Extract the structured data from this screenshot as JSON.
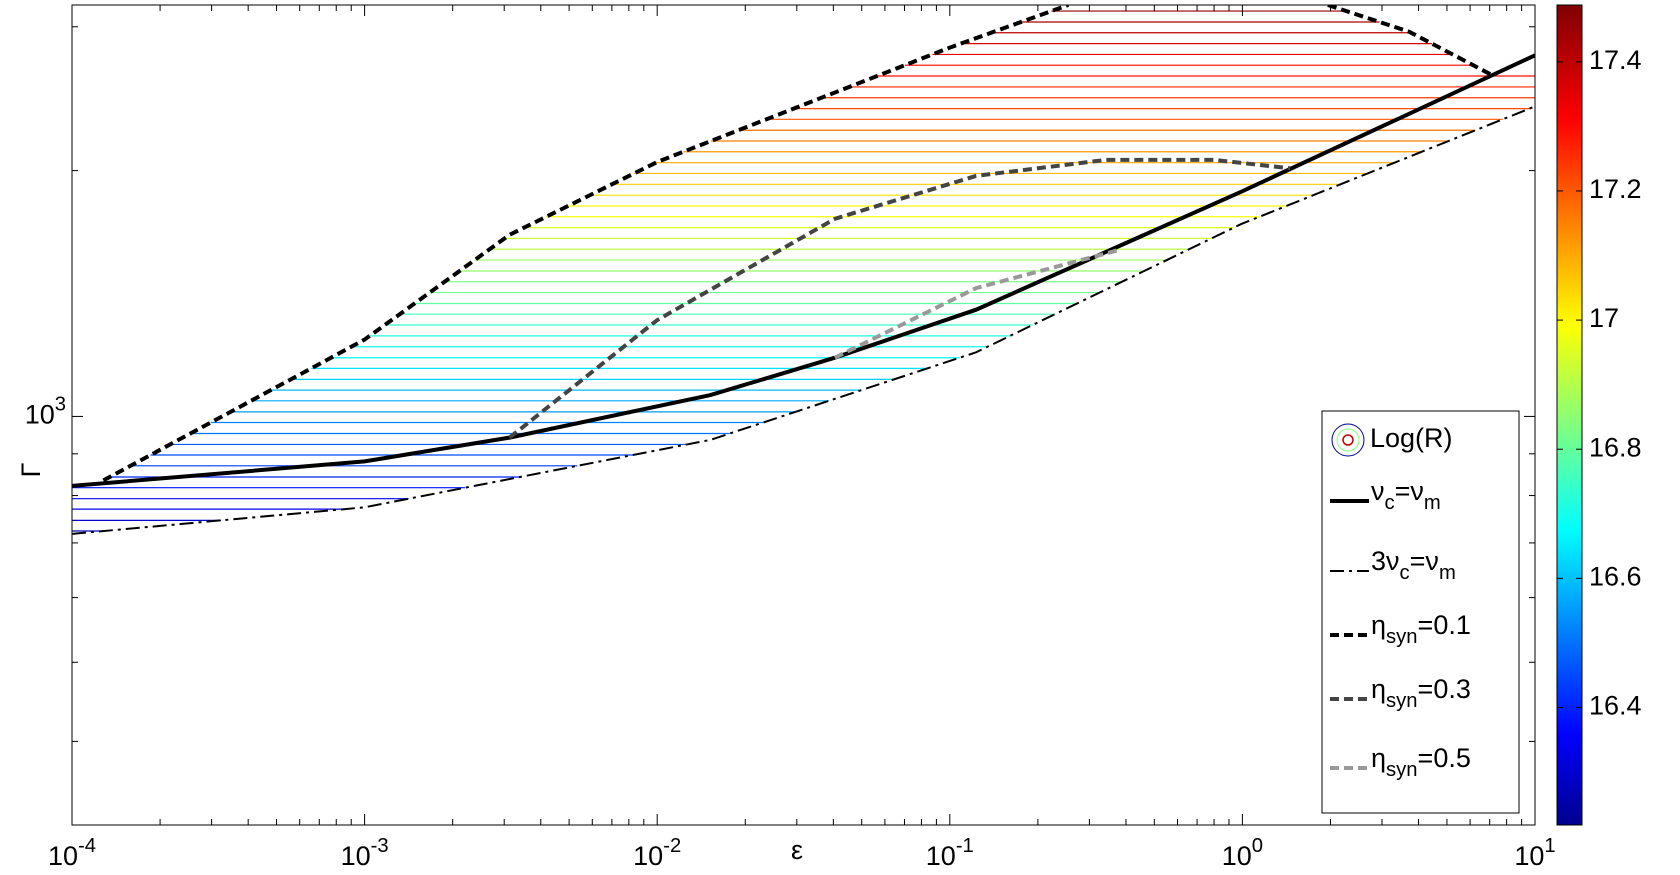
{
  "chart_data": {
    "type": "line",
    "xlabel": "ε",
    "ylabel": "Γ",
    "xscale": "log",
    "yscale": "log",
    "minor_ticks": true,
    "legend": "lower right",
    "xlim": [
      0.0001,
      10
    ],
    "xticks": [
      {
        "value": 0.0001,
        "label": "10^{-4}"
      },
      {
        "value": 0.001,
        "label": "10^{-3}"
      },
      {
        "value": 0.01,
        "label": "10^{-2}"
      },
      {
        "value": 0.1,
        "label": "10^{-1}"
      },
      {
        "value": 1,
        "label": "10^{0}"
      },
      {
        "value": 10,
        "label": "10^{1}"
      }
    ],
    "ylim": [
      316,
      3190
    ],
    "yticks": [
      {
        "value": 1000,
        "label": "10^{3}"
      }
    ],
    "series": [
      {
        "name": "ν_{c}=ν_{m}",
        "color": "#000000",
        "style": "solid",
        "x": [
          0.0001,
          0.001,
          0.00313,
          0.0152,
          0.0405,
          0.123,
          0.99,
          10
        ],
        "values": [
          822,
          881,
          942,
          1062,
          1180,
          1351,
          1884,
          2768
        ]
      },
      {
        "name": "3ν_{c}=ν_{m}",
        "color": "#000000",
        "style": "dashdot",
        "x": [
          0.0001,
          0.001,
          0.0152,
          0.123,
          0.99,
          10
        ],
        "values": [
          718,
          774,
          936,
          1198,
          1720,
          2397
        ]
      },
      {
        "name": "η_{syn}=0.1",
        "color": "#000000",
        "style": "dash",
        "x": [
          0.000128,
          0.001,
          0.00313,
          0.01,
          0.1,
          0.254,
          null,
          1.96,
          3.72,
          7.05
        ],
        "values": [
          835,
          1242,
          1669,
          2049,
          2829,
          3190,
          null,
          3190,
          2958,
          2624
        ]
      },
      {
        "name": "η_{syn}=0.3",
        "color": "#444444",
        "style": "dash",
        "x": [
          0.00313,
          0.01,
          0.0405,
          0.123,
          0.341,
          0.8,
          1.455
        ],
        "values": [
          942,
          1312,
          1746,
          1970,
          2061,
          2061,
          2013
        ]
      },
      {
        "name": "η_{syn}=0.5",
        "color": "#999999",
        "style": "dash",
        "x": [
          0.0405,
          0.123,
          0.372
        ],
        "values": [
          1180,
          1436,
          1596
        ]
      }
    ],
    "contour": {
      "name": "Log(R)",
      "levels": [
        724,
        746,
        770,
        793,
        818,
        843,
        870,
        897,
        924,
        953,
        983,
        1013,
        1045,
        1077,
        1110,
        1145,
        1180,
        1217,
        1255,
        1294,
        1334,
        1375,
        1418,
        1462,
        1507,
        1554,
        1602,
        1652,
        1703,
        1756,
        1810,
        1866,
        1924,
        1984,
        2045,
        2109,
        2174,
        2241,
        2311,
        2382,
        2456,
        2532,
        2611,
        2692,
        2775,
        2861,
        2950,
        3041,
        3136
      ],
      "values": [
        16.3,
        16.32,
        16.35,
        16.37,
        16.4,
        16.42,
        16.45,
        16.47,
        16.49,
        16.52,
        16.54,
        16.57,
        16.59,
        16.61,
        16.64,
        16.66,
        16.69,
        16.71,
        16.73,
        16.76,
        16.78,
        16.81,
        16.83,
        16.85,
        16.88,
        16.9,
        16.93,
        16.95,
        16.97,
        17.0,
        17.02,
        17.05,
        17.07,
        17.1,
        17.12,
        17.14,
        17.17,
        17.19,
        17.22,
        17.24,
        17.26,
        17.29,
        17.31,
        17.34,
        17.36,
        17.38,
        17.41,
        17.43,
        17.46
      ]
    },
    "colorbar": {
      "clim": [
        16.218,
        17.488
      ],
      "ticks": [
        16.4,
        16.6,
        16.8,
        17,
        17.2,
        17.4
      ],
      "colormap": "jet"
    }
  }
}
